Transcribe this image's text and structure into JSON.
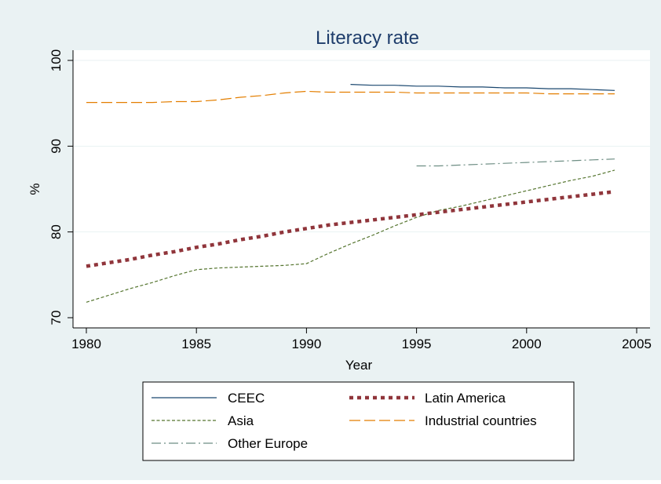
{
  "chart_data": {
    "type": "line",
    "title": "Literacy rate",
    "xlabel": "Year",
    "ylabel": "%",
    "xlim": [
      1980,
      2005
    ],
    "ylim": [
      70,
      100
    ],
    "xticks": [
      1980,
      1985,
      1990,
      1995,
      2000,
      2005
    ],
    "yticks": [
      70,
      80,
      90,
      100
    ],
    "grid": true,
    "legend_position": "bottom",
    "colors": {
      "background": "#eaf2f3",
      "plot_background": "#ffffff",
      "grid": "#eaf2f3"
    },
    "series": [
      {
        "name": "CEEC",
        "color": "#1a476f",
        "dash": "solid",
        "x": [
          1992,
          1993,
          1994,
          1995,
          1996,
          1997,
          1998,
          1999,
          2000,
          2001,
          2002,
          2003,
          2004
        ],
        "y": [
          97.2,
          97.1,
          97.1,
          97.0,
          97.0,
          96.9,
          96.9,
          96.8,
          96.8,
          96.7,
          96.7,
          96.6,
          96.5
        ]
      },
      {
        "name": "Latin America",
        "color": "#90353b",
        "dash": "dotted-thick",
        "x": [
          1980,
          1981,
          1982,
          1983,
          1984,
          1985,
          1986,
          1987,
          1988,
          1989,
          1990,
          1991,
          1992,
          1993,
          1994,
          1995,
          1996,
          1997,
          1998,
          1999,
          2000,
          2001,
          2002,
          2003,
          2004
        ],
        "y": [
          76.0,
          76.4,
          76.8,
          77.3,
          77.7,
          78.2,
          78.6,
          79.1,
          79.5,
          80.0,
          80.4,
          80.8,
          81.1,
          81.4,
          81.7,
          82.0,
          82.3,
          82.6,
          82.9,
          83.2,
          83.5,
          83.8,
          84.1,
          84.4,
          84.7
        ]
      },
      {
        "name": "Asia",
        "color": "#55752f",
        "dash": "short-dash",
        "x": [
          1980,
          1981,
          1982,
          1983,
          1984,
          1985,
          1986,
          1987,
          1988,
          1989,
          1990,
          1991,
          1992,
          1993,
          1994,
          1995,
          1996,
          1997,
          1998,
          1999,
          2000,
          2001,
          2002,
          2003,
          2004
        ],
        "y": [
          71.8,
          72.6,
          73.4,
          74.1,
          74.9,
          75.6,
          75.8,
          75.9,
          76.0,
          76.1,
          76.3,
          77.5,
          78.6,
          79.6,
          80.7,
          81.7,
          82.5,
          83.0,
          83.6,
          84.2,
          84.8,
          85.4,
          86.0,
          86.5,
          87.2
        ]
      },
      {
        "name": "Industrial countries",
        "color": "#e37e00",
        "dash": "long-dash",
        "x": [
          1980,
          1981,
          1982,
          1983,
          1984,
          1985,
          1986,
          1987,
          1988,
          1989,
          1990,
          1991,
          1992,
          1993,
          1994,
          1995,
          1996,
          1997,
          1998,
          1999,
          2000,
          2001,
          2002,
          2003,
          2004
        ],
        "y": [
          95.1,
          95.1,
          95.1,
          95.1,
          95.2,
          95.2,
          95.4,
          95.7,
          95.9,
          96.2,
          96.4,
          96.3,
          96.3,
          96.3,
          96.3,
          96.2,
          96.2,
          96.2,
          96.2,
          96.2,
          96.2,
          96.1,
          96.1,
          96.1,
          96.1
        ]
      },
      {
        "name": "Other Europe",
        "color": "#6e8e84",
        "dash": "dash-dot",
        "x": [
          1995,
          1996,
          1997,
          1998,
          1999,
          2000,
          2001,
          2002,
          2003,
          2004
        ],
        "y": [
          87.7,
          87.7,
          87.8,
          87.9,
          88.0,
          88.1,
          88.2,
          88.3,
          88.4,
          88.5
        ]
      }
    ]
  }
}
